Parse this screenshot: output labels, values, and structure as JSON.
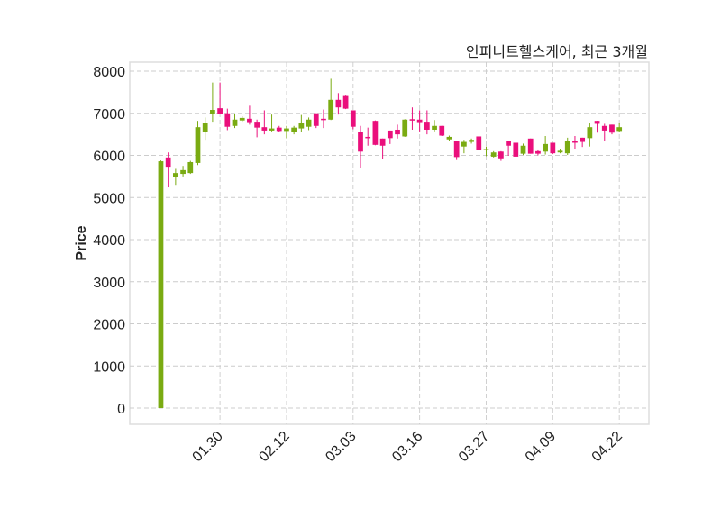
{
  "chart_data": {
    "type": "candlestick",
    "title": "인피니트헬스케어, 최근 3개월",
    "xlabel": "",
    "ylabel": "Price",
    "ylim": [
      -385,
      8214
    ],
    "xlim": [
      -4.2,
      66
    ],
    "grid": true,
    "yticks": [
      0,
      1000,
      2000,
      3000,
      4000,
      5000,
      6000,
      7000,
      8000
    ],
    "xticks": [
      {
        "index": 8,
        "label": "01.30"
      },
      {
        "index": 17,
        "label": "02.12"
      },
      {
        "index": 26,
        "label": "03.03"
      },
      {
        "index": 35,
        "label": "03.16"
      },
      {
        "index": 44,
        "label": "03.27"
      },
      {
        "index": 53,
        "label": "04.09"
      },
      {
        "index": 62,
        "label": "04.22"
      }
    ],
    "colors": {
      "up": "#7aab12",
      "down": "#ea0f7c",
      "grid": "#cccccc",
      "axis": "#dddddd"
    },
    "ohlc": [
      [
        0,
        5880,
        0,
        5860
      ],
      [
        5950,
        6070,
        5240,
        5730
      ],
      [
        5480,
        5680,
        5300,
        5580
      ],
      [
        5560,
        5750,
        5500,
        5650
      ],
      [
        5580,
        5870,
        5560,
        5840
      ],
      [
        5820,
        6820,
        5770,
        6670
      ],
      [
        6550,
        6900,
        6370,
        6780
      ],
      [
        6980,
        7730,
        6800,
        7080
      ],
      [
        7120,
        7730,
        6980,
        6980
      ],
      [
        7000,
        7110,
        6600,
        6680
      ],
      [
        6700,
        6980,
        6650,
        6850
      ],
      [
        6830,
        6930,
        6800,
        6890
      ],
      [
        6870,
        7180,
        6730,
        6790
      ],
      [
        6800,
        6850,
        6430,
        6660
      ],
      [
        6670,
        7070,
        6500,
        6590
      ],
      [
        6590,
        6970,
        6570,
        6640
      ],
      [
        6660,
        6700,
        6550,
        6580
      ],
      [
        6580,
        6700,
        6410,
        6640
      ],
      [
        6560,
        6700,
        6500,
        6660
      ],
      [
        6640,
        6960,
        6550,
        6780
      ],
      [
        6680,
        6900,
        6600,
        6850
      ],
      [
        7000,
        7000,
        6650,
        6700
      ],
      [
        6870,
        7090,
        6650,
        6850
      ],
      [
        6850,
        7820,
        6840,
        7320
      ],
      [
        7320,
        7480,
        6970,
        7140
      ],
      [
        7410,
        7420,
        7100,
        7110
      ],
      [
        7070,
        7070,
        6620,
        6680
      ],
      [
        6550,
        6700,
        5710,
        6090
      ],
      [
        6440,
        6660,
        6230,
        6430
      ],
      [
        6820,
        6830,
        6240,
        6250
      ],
      [
        6400,
        6400,
        5920,
        6230
      ],
      [
        6590,
        6590,
        6270,
        6410
      ],
      [
        6610,
        6730,
        6400,
        6500
      ],
      [
        6450,
        6860,
        6440,
        6850
      ],
      [
        6860,
        7140,
        6610,
        6840
      ],
      [
        6850,
        7070,
        6570,
        6790
      ],
      [
        6800,
        7070,
        6500,
        6610
      ],
      [
        6610,
        6840,
        6570,
        6700
      ],
      [
        6700,
        6700,
        6460,
        6470
      ],
      [
        6380,
        6470,
        6340,
        6440
      ],
      [
        6350,
        6350,
        5890,
        5960
      ],
      [
        6210,
        6370,
        6050,
        6320
      ],
      [
        6320,
        6400,
        6280,
        6370
      ],
      [
        6450,
        6450,
        6120,
        6120
      ],
      [
        6130,
        6210,
        5980,
        6150
      ],
      [
        5970,
        6100,
        5950,
        6070
      ],
      [
        6090,
        6100,
        5870,
        5930
      ],
      [
        6350,
        6350,
        5990,
        6230
      ],
      [
        6300,
        6300,
        5970,
        5970
      ],
      [
        6040,
        6280,
        6010,
        6230
      ],
      [
        6400,
        6400,
        6040,
        6040
      ],
      [
        6100,
        6140,
        6000,
        6040
      ],
      [
        6090,
        6460,
        6020,
        6270
      ],
      [
        6300,
        6300,
        6030,
        6050
      ],
      [
        6070,
        6160,
        6050,
        6110
      ],
      [
        6050,
        6420,
        6010,
        6350
      ],
      [
        6350,
        6460,
        6160,
        6300
      ],
      [
        6420,
        6420,
        6200,
        6320
      ],
      [
        6410,
        6770,
        6210,
        6670
      ],
      [
        6820,
        6820,
        6540,
        6750
      ],
      [
        6700,
        6750,
        6350,
        6590
      ],
      [
        6730,
        6730,
        6500,
        6540
      ],
      [
        6580,
        6760,
        6550,
        6670
      ]
    ]
  }
}
